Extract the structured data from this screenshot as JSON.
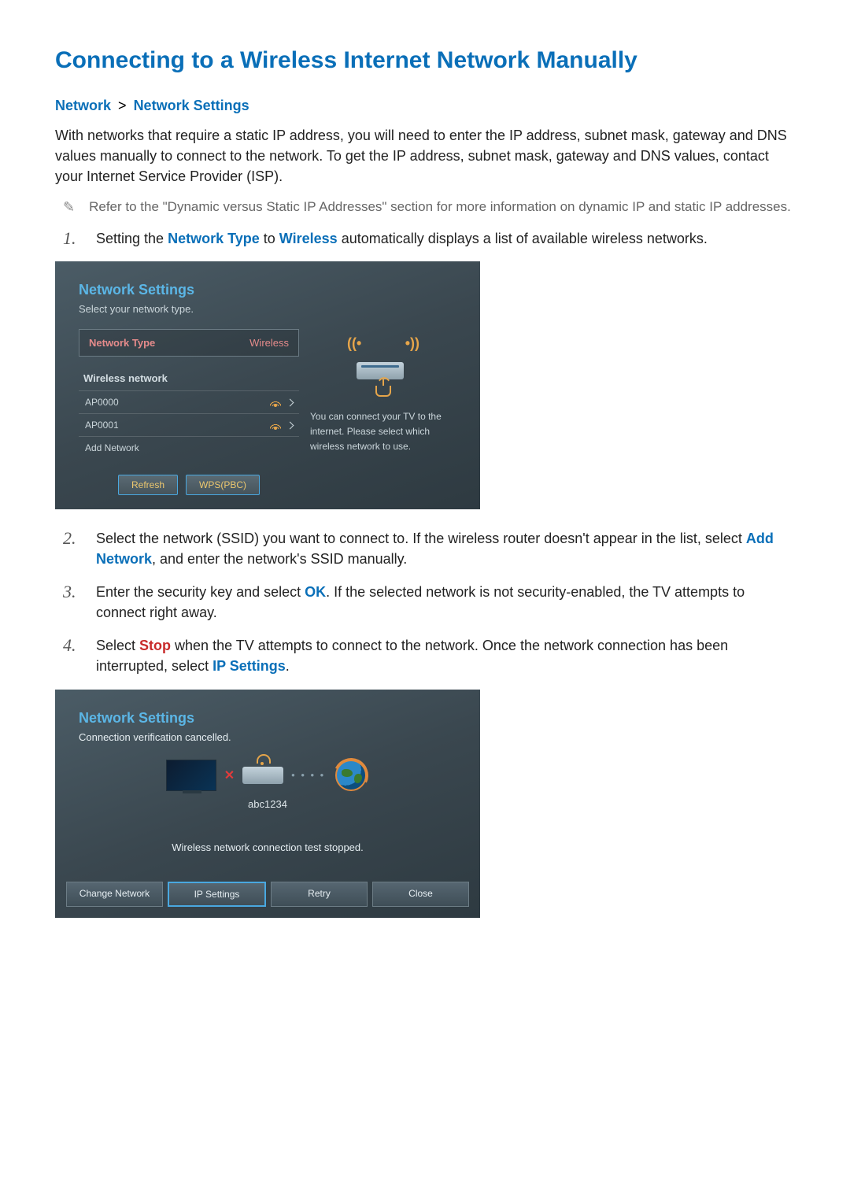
{
  "page": {
    "title": "Connecting to a Wireless Internet Network Manually",
    "breadcrumb": {
      "a": "Network",
      "sep": ">",
      "b": "Network Settings"
    },
    "intro": "With networks that require a static IP address, you will need to enter the IP address, subnet mask, gateway and DNS values manually to connect to the network. To get the IP address, subnet mask, gateway and DNS values, contact your Internet Service Provider (ISP).",
    "note": "Refer to the \"Dynamic versus Static IP Addresses\" section for more information on dynamic IP and static IP addresses.",
    "steps": {
      "s1_a": "Setting the ",
      "s1_b": "Network Type",
      "s1_c": " to ",
      "s1_d": "Wireless",
      "s1_e": " automatically displays a list of available wireless networks.",
      "s2_a": "Select the network (SSID) you want to connect to. If the wireless router doesn't appear in the list, select ",
      "s2_b": "Add Network",
      "s2_c": ", and enter the network's SSID manually.",
      "s3_a": "Enter the security key and select ",
      "s3_b": "OK",
      "s3_c": ". If the selected network is not security-enabled, the TV attempts to connect right away.",
      "s4_a": "Select ",
      "s4_b": "Stop",
      "s4_c": " when the TV attempts to connect to the network. Once the network connection has been interrupted, select ",
      "s4_d": "IP Settings",
      "s4_e": "."
    }
  },
  "panel1": {
    "title": "Network Settings",
    "subtitle": "Select your network type.",
    "nt_label": "Network Type",
    "nt_value": "Wireless",
    "list_head": "Wireless network",
    "items": {
      "i0": "AP0000",
      "i1": "AP0001",
      "i2": "Add Network"
    },
    "btn_refresh": "Refresh",
    "btn_wps": "WPS(PBC)",
    "help": "You can connect your TV to the internet. Please select which wireless network to use."
  },
  "panel2": {
    "title": "Network Settings",
    "subtitle": "Connection verification cancelled.",
    "ssid": "abc1234",
    "status": "Wireless network connection test stopped.",
    "btn_change": "Change Network",
    "btn_ip": "IP Settings",
    "btn_retry": "Retry",
    "btn_close": "Close"
  },
  "colors": {
    "accent_blue": "#0a6fb8",
    "accent_red": "#c82b2b",
    "panel_bg_from": "#4b5c66",
    "panel_bg_to": "#2e3a41",
    "panel_title": "#5bb6e6",
    "panel_text": "#cbd6db",
    "warm_accent": "#e6a54a",
    "btn_highlight_border": "#49a8e0",
    "nt_text": "#e58b8b",
    "xmark": "#e23b3b",
    "globe_ring": "#e08a3d"
  }
}
